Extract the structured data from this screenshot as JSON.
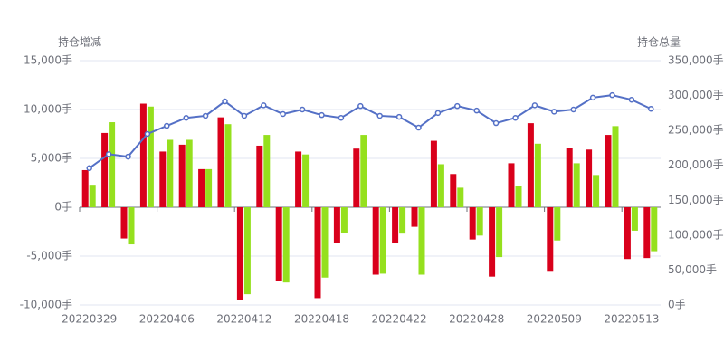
{
  "chart_data": {
    "type": "bar",
    "y_label": "持仓增减",
    "y2_label": "持仓总量",
    "categories": [
      "20220329",
      null,
      null,
      null,
      "20220406",
      null,
      null,
      null,
      "20220412",
      null,
      null,
      null,
      "20220418",
      null,
      null,
      null,
      "20220422",
      null,
      null,
      null,
      "20220428",
      null,
      null,
      null,
      "20220509",
      null,
      null,
      null,
      "20220513",
      null
    ],
    "series": [
      {
        "type": "bar",
        "color": "#d9001b",
        "values": [
          3800,
          7600,
          -3200,
          10600,
          5700,
          6400,
          3900,
          9200,
          -9500,
          6300,
          -7500,
          5700,
          -9300,
          -3700,
          6000,
          -6900,
          -3700,
          -2000,
          6800,
          3400,
          -3300,
          -7100,
          4500,
          8600,
          -6600,
          6100,
          5900,
          7400,
          -5300,
          -5200
        ]
      },
      {
        "type": "bar",
        "color": "#95e01e",
        "values": [
          2300,
          8700,
          -3800,
          10300,
          6900,
          6900,
          3900,
          8500,
          -8900,
          7400,
          -7700,
          5400,
          -7200,
          -2600,
          7400,
          -6800,
          -2700,
          -6900,
          4400,
          2000,
          -2900,
          -5100,
          2200,
          6500,
          -3400,
          4500,
          3300,
          8300,
          -2400,
          -4500
        ]
      },
      {
        "type": "line",
        "axis": "y2",
        "color": "#5470c6",
        "values": [
          196000,
          216000,
          212500,
          245000,
          256600,
          268000,
          271000,
          291600,
          271000,
          286000,
          273500,
          280000,
          272000,
          268000,
          285000,
          271000,
          269500,
          254000,
          275000,
          285000,
          278500,
          260500,
          268000,
          286000,
          277000,
          280000,
          297000,
          300500,
          294000,
          281000
        ]
      }
    ],
    "ylim": [
      -10000,
      15000
    ],
    "yticks": [
      {
        "value": -10000,
        "label": "-10,000手"
      },
      {
        "value": -5000,
        "label": "-5,000手"
      },
      {
        "value": 0,
        "label": "0手"
      },
      {
        "value": 5000,
        "label": "5,000手"
      },
      {
        "value": 10000,
        "label": "10,000手"
      },
      {
        "value": 15000,
        "label": "15,000手"
      }
    ],
    "y2lim": [
      0,
      350000
    ],
    "y2ticks": [
      {
        "value": 0,
        "label": "0手"
      },
      {
        "value": 50000,
        "label": "50,000手"
      },
      {
        "value": 100000,
        "label": "100,000手"
      },
      {
        "value": 150000,
        "label": "150,000手"
      },
      {
        "value": 200000,
        "label": "200,000手"
      },
      {
        "value": 250000,
        "label": "250,000手"
      },
      {
        "value": 300000,
        "label": "300,000手"
      },
      {
        "value": 350000,
        "label": "350,000手"
      }
    ],
    "grid": true
  }
}
